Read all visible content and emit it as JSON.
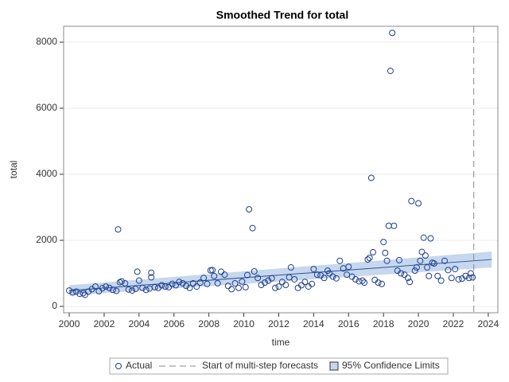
{
  "chart_data": {
    "type": "scatter",
    "title": "Smoothed Trend for total",
    "x_label": "time",
    "y_label": "total",
    "xlim": [
      1999.68,
      2024.55
    ],
    "xticks": [
      2000,
      2002,
      2004,
      2006,
      2008,
      2010,
      2012,
      2014,
      2016,
      2018,
      2020,
      2022,
      2024
    ],
    "ylim": [
      -193,
      8482
    ],
    "yticks": [
      0,
      2000,
      4000,
      6000,
      8000
    ],
    "grid": true,
    "series": [
      {
        "name": "Actual",
        "color": "#1f3f8f",
        "x": [
          2000.0,
          2000.2,
          2000.4,
          2000.6,
          2000.8,
          2000.9,
          2001.1,
          2001.3,
          2001.5,
          2001.7,
          2001.9,
          2002.1,
          2002.3,
          2002.5,
          2002.7,
          2002.8,
          2002.9,
          2003.0,
          2003.2,
          2003.4,
          2003.6,
          2003.8,
          2003.9,
          2004.0,
          2004.2,
          2004.4,
          2004.6,
          2004.7,
          2004.7,
          2004.9,
          2005.1,
          2005.3,
          2005.5,
          2005.7,
          2005.9,
          2006.1,
          2006.3,
          2006.5,
          2006.7,
          2006.9,
          2007.1,
          2007.3,
          2007.5,
          2007.7,
          2007.9,
          2008.1,
          2008.2,
          2008.3,
          2008.5,
          2008.7,
          2008.9,
          2009.1,
          2009.3,
          2009.5,
          2009.7,
          2009.9,
          2010.1,
          2010.2,
          2010.3,
          2010.5,
          2010.6,
          2010.8,
          2011.0,
          2011.2,
          2011.4,
          2011.6,
          2011.8,
          2012.0,
          2012.2,
          2012.4,
          2012.6,
          2012.7,
          2012.9,
          2013.1,
          2013.3,
          2013.5,
          2013.7,
          2013.9,
          2014.0,
          2014.2,
          2014.4,
          2014.6,
          2014.8,
          2014.9,
          2015.1,
          2015.3,
          2015.5,
          2015.7,
          2015.9,
          2016.0,
          2016.2,
          2016.4,
          2016.6,
          2016.8,
          2016.9,
          2017.1,
          2017.2,
          2017.3,
          2017.4,
          2017.5,
          2017.7,
          2017.9,
          2018.0,
          2018.1,
          2018.2,
          2018.3,
          2018.4,
          2018.5,
          2018.6,
          2018.8,
          2018.9,
          2019.0,
          2019.2,
          2019.4,
          2019.5,
          2019.6,
          2019.8,
          2019.9,
          2020.0,
          2020.1,
          2020.2,
          2020.3,
          2020.4,
          2020.5,
          2020.6,
          2020.7,
          2020.8,
          2020.9,
          2021.1,
          2021.3,
          2021.5,
          2021.7,
          2021.9,
          2022.1,
          2022.3,
          2022.5,
          2022.7,
          2022.9,
          2023.0,
          2023.1
        ],
        "values": [
          480,
          420,
          450,
          380,
          400,
          350,
          450,
          520,
          600,
          460,
          550,
          600,
          560,
          500,
          470,
          2330,
          730,
          760,
          700,
          510,
          480,
          530,
          1050,
          780,
          560,
          500,
          540,
          1020,
          880,
          580,
          560,
          640,
          600,
          580,
          680,
          640,
          740,
          700,
          620,
          560,
          700,
          600,
          720,
          860,
          680,
          1090,
          1100,
          920,
          700,
          1050,
          960,
          620,
          520,
          700,
          560,
          750,
          580,
          950,
          2940,
          2370,
          1060,
          860,
          650,
          720,
          780,
          850,
          560,
          600,
          740,
          650,
          880,
          1180,
          820,
          560,
          640,
          740,
          600,
          680,
          1130,
          960,
          940,
          860,
          1080,
          1000,
          900,
          850,
          1380,
          1150,
          960,
          1200,
          900,
          820,
          760,
          780,
          720,
          1420,
          1470,
          3890,
          1640,
          800,
          720,
          680,
          1950,
          1620,
          1380,
          2440,
          7130,
          8280,
          2440,
          1080,
          1400,
          1000,
          960,
          860,
          740,
          3190,
          1080,
          1180,
          3120,
          1380,
          1650,
          2080,
          1540,
          1180,
          920,
          2060,
          1320,
          1300,
          920,
          780,
          1380,
          1100,
          860,
          1130,
          820,
          840,
          920,
          860,
          1000,
          880
        ]
      }
    ],
    "trend": {
      "color": "#2f5597",
      "x": [
        2000,
        2024.2
      ],
      "values": [
        480,
        1420
      ]
    },
    "band": {
      "name": "95% Confidence Limits",
      "color": "#c6d7ee",
      "x": [
        2000,
        2024.2
      ],
      "lower": [
        330,
        1180
      ],
      "upper": [
        640,
        1660
      ]
    },
    "forecast": {
      "name": "Start of multi-step forecasts",
      "x": 2023.17,
      "color": "#888888"
    }
  }
}
